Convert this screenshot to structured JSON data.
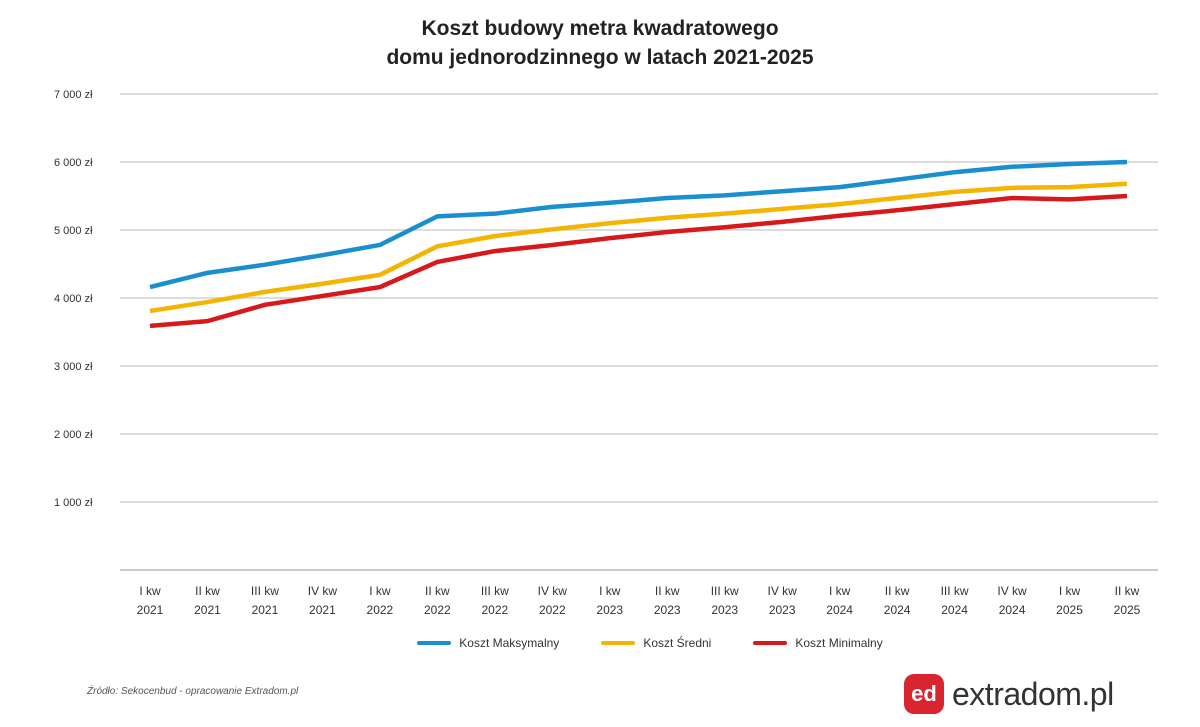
{
  "chart_data": {
    "type": "line",
    "title": "Koszt budowy metra kwadratowego domu jednorodzinnego w latach 2021-2025",
    "title_lines": [
      "Koszt budowy metra kwadratowego",
      "domu jednorodzinnego w latach 2021-2025"
    ],
    "categories": [
      [
        "I kw",
        "2021"
      ],
      [
        "II kw",
        "2021"
      ],
      [
        "III kw",
        "2021"
      ],
      [
        "IV kw",
        "2021"
      ],
      [
        "I kw",
        "2022"
      ],
      [
        "II kw",
        "2022"
      ],
      [
        "III kw",
        "2022"
      ],
      [
        "IV kw",
        "2022"
      ],
      [
        "I kw",
        "2023"
      ],
      [
        "II kw",
        "2023"
      ],
      [
        "III kw",
        "2023"
      ],
      [
        "IV kw",
        "2023"
      ],
      [
        "I kw",
        "2024"
      ],
      [
        "II kw",
        "2024"
      ],
      [
        "III kw",
        "2024"
      ],
      [
        "IV kw",
        "2024"
      ],
      [
        "I kw",
        "2025"
      ],
      [
        "II kw",
        "2025"
      ]
    ],
    "yticks": [
      {
        "value": 1000,
        "label": "1 000 zł"
      },
      {
        "value": 2000,
        "label": "2 000 zł"
      },
      {
        "value": 3000,
        "label": "3 000 zł"
      },
      {
        "value": 4000,
        "label": "4 000 zł"
      },
      {
        "value": 5000,
        "label": "5 000 zł"
      },
      {
        "value": 6000,
        "label": "6 000 zł"
      },
      {
        "value": 7000,
        "label": "7 000 zł"
      }
    ],
    "ylim": [
      0,
      7000
    ],
    "grid": true,
    "legend_position": "bottom",
    "series": [
      {
        "name": "Koszt Maksymalny",
        "color": "#1a8fd0",
        "values": [
          4160,
          4370,
          4490,
          4630,
          4780,
          5200,
          5240,
          5340,
          5400,
          5470,
          5510,
          5570,
          5630,
          5740,
          5850,
          5930,
          5970,
          6000
        ]
      },
      {
        "name": "Koszt Średni",
        "color": "#f5b400",
        "values": [
          3810,
          3940,
          4090,
          4210,
          4340,
          4760,
          4910,
          5010,
          5100,
          5180,
          5240,
          5310,
          5380,
          5470,
          5560,
          5620,
          5630,
          5680
        ]
      },
      {
        "name": "Koszt Minimalny",
        "color": "#d7191c",
        "values": [
          3590,
          3660,
          3900,
          4030,
          4160,
          4530,
          4690,
          4780,
          4880,
          4970,
          5040,
          5120,
          5210,
          5290,
          5380,
          5470,
          5450,
          5500
        ]
      }
    ]
  },
  "source": "Źródło: Sekocenbud - opracowanie Extradom.pl",
  "logo": {
    "mark": "ed",
    "text": "extradom.pl",
    "color": "#d92530"
  }
}
